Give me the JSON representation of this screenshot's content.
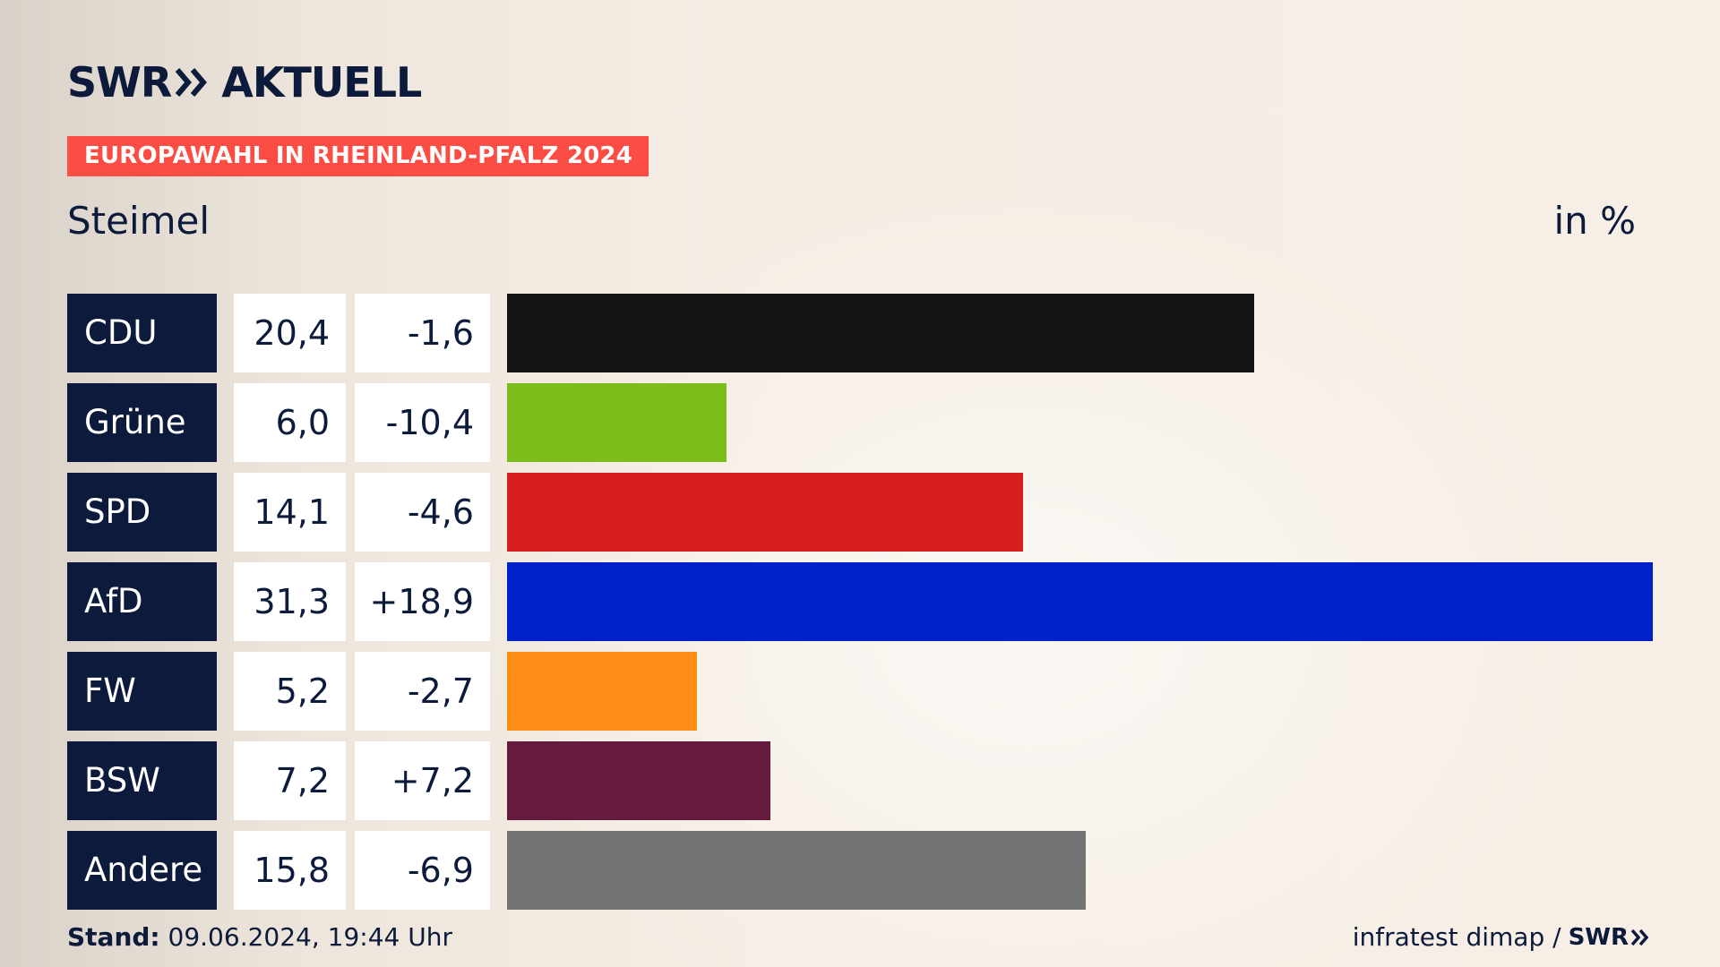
{
  "header": {
    "brand_left": "SWR",
    "brand_right": "AKTUELL",
    "banner": "EUROPAWAHL IN RHEINLAND-PFALZ 2024",
    "place": "Steimel",
    "unit": "in %"
  },
  "footer": {
    "stand_label": "Stand:",
    "stand_value": "09.06.2024, 19:44 Uhr",
    "source": "infratest dimap /",
    "source_brand": "SWR"
  },
  "icons": {
    "logo_chevrons": "double-chevron-right-icon"
  },
  "colors": {
    "navy": "#0c1a3b",
    "banner": "#fc4d44"
  },
  "chart_data": {
    "type": "bar",
    "orientation": "horizontal",
    "categories": [
      "CDU",
      "Grüne",
      "SPD",
      "AfD",
      "FW",
      "BSW",
      "Andere"
    ],
    "values": [
      20.4,
      6.0,
      14.1,
      31.3,
      5.2,
      7.2,
      15.8
    ],
    "value_labels": [
      "20,4",
      "6,0",
      "14,1",
      "31,3",
      "5,2",
      "7,2",
      "15,8"
    ],
    "diff_values": [
      -1.6,
      -10.4,
      -4.6,
      18.9,
      -2.7,
      7.2,
      -6.9
    ],
    "diff_labels": [
      "-1,6",
      "-10,4",
      "-4,6",
      "+18,9",
      "-2,7",
      "+7,2",
      "-6,9"
    ],
    "colors": [
      "#141414",
      "#7bbd1b",
      "#d71f1f",
      "#0021c8",
      "#ff8c14",
      "#661a3d",
      "#737373"
    ],
    "title": "Steimel",
    "ylabel": "in %",
    "xlim": [
      0,
      31.3
    ],
    "grid": false,
    "legend": "none"
  }
}
